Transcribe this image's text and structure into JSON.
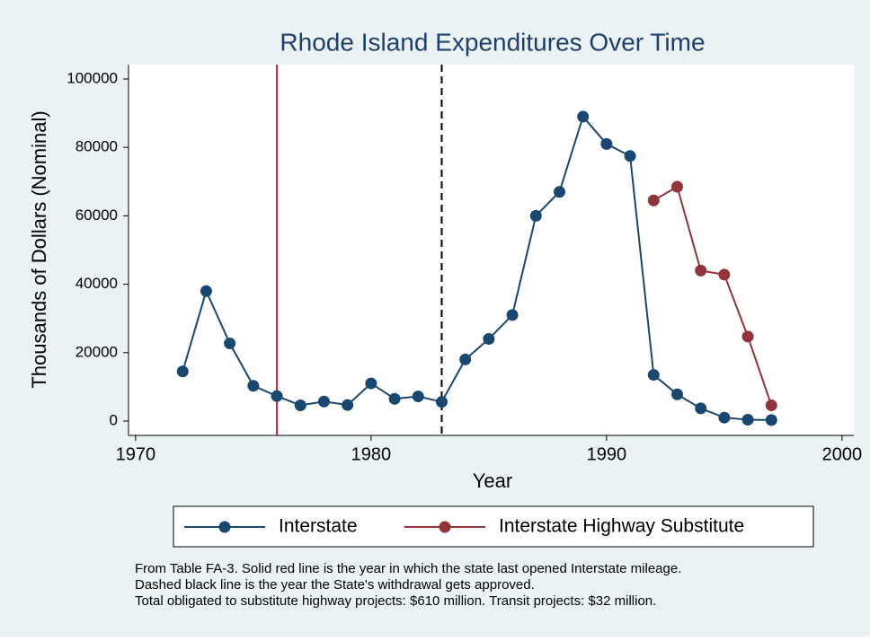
{
  "chart_data": {
    "type": "line",
    "title": "Rhode Island Expenditures Over Time",
    "xlabel": "Year",
    "ylabel": "Thousands of Dollars (Nominal)",
    "xlim": [
      1969.7,
      2000.5
    ],
    "xticks": [
      1970,
      1980,
      1990,
      2000
    ],
    "ylim": [
      -4200,
      104200
    ],
    "yticks": [
      0,
      20000,
      40000,
      60000,
      80000,
      100000
    ],
    "vlines": [
      {
        "x": 1976,
        "color": "#c0253c",
        "style": "solid"
      },
      {
        "x": 1983,
        "color": "#000000",
        "style": "dashed"
      }
    ],
    "series": [
      {
        "name": "Interstate",
        "color": "#1a476f",
        "x": [
          1972,
          1973,
          1974,
          1975,
          1976,
          1977,
          1978,
          1979,
          1980,
          1981,
          1982,
          1983,
          1984,
          1985,
          1986,
          1987,
          1988,
          1989,
          1990,
          1991,
          1992,
          1993,
          1994,
          1995,
          1996,
          1997
        ],
        "values": [
          14500,
          38000,
          22700,
          10300,
          7300,
          4600,
          5700,
          4700,
          11000,
          6500,
          7200,
          5600,
          18000,
          24000,
          31000,
          60000,
          67000,
          89000,
          81000,
          77500,
          13500,
          7800,
          3700,
          1000,
          400,
          300
        ]
      },
      {
        "name": "Interstate Highway Substitute",
        "color": "#90353b",
        "x": [
          1992,
          1993,
          1994,
          1995,
          1996,
          1997
        ],
        "values": [
          64500,
          68500,
          44000,
          42800,
          24700,
          4600
        ]
      }
    ],
    "notes": [
      "From Table FA-3. Solid red line is the year in which the state last opened Interstate mileage.",
      "Dashed black line is the year the State's withdrawal gets approved.",
      "Total obligated to substitute highway projects: $610 million. Transit projects: $32 million."
    ]
  }
}
